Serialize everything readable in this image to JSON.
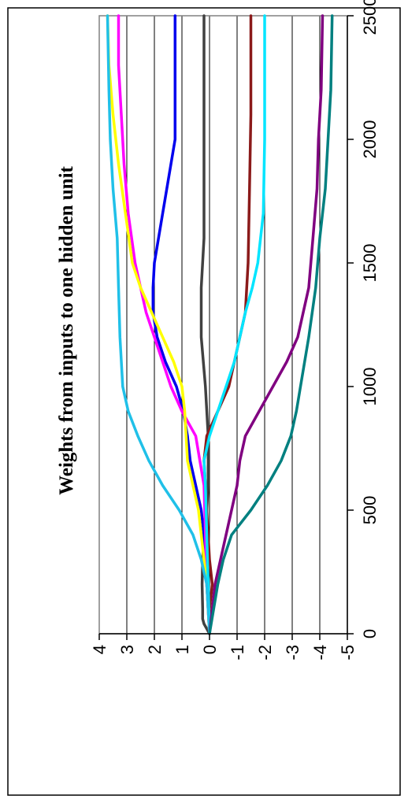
{
  "chart_data": {
    "type": "line",
    "title": "Weights from inputs to one hidden unit",
    "orientation": "rotated-90-counterclockwise",
    "xlabel": "",
    "ylabel": "",
    "xlim": [
      0,
      2500
    ],
    "ylim": [
      -5,
      4
    ],
    "x_ticks": [
      "0",
      "500",
      "1000",
      "1500",
      "2000",
      "2500"
    ],
    "y_ticks": [
      "4",
      "3",
      "2",
      "1",
      "0",
      "-1",
      "-2",
      "-3",
      "-4",
      "-5"
    ],
    "grid": true,
    "legend": "none",
    "series": [
      {
        "color": "#404040",
        "points": [
          [
            0,
            0
          ],
          [
            20,
            0.1
          ],
          [
            40,
            0.2
          ],
          [
            60,
            0.25
          ],
          [
            100,
            0.25
          ],
          [
            200,
            0.27
          ],
          [
            300,
            0.25
          ],
          [
            400,
            0.2
          ],
          [
            500,
            0.1
          ],
          [
            600,
            0.05
          ],
          [
            800,
            0.05
          ],
          [
            1000,
            0.15
          ],
          [
            1200,
            0.3
          ],
          [
            1400,
            0.3
          ],
          [
            1600,
            0.2
          ],
          [
            2000,
            0.2
          ],
          [
            2500,
            0.2
          ]
        ]
      },
      {
        "color": "#8b1a1a",
        "points": [
          [
            0,
            0
          ],
          [
            100,
            0
          ],
          [
            200,
            -0.1
          ],
          [
            300,
            0
          ],
          [
            500,
            0.1
          ],
          [
            700,
            0.2
          ],
          [
            800,
            0.1
          ],
          [
            900,
            -0.3
          ],
          [
            1000,
            -0.7
          ],
          [
            1100,
            -0.9
          ],
          [
            1200,
            -1.1
          ],
          [
            1300,
            -1.3
          ],
          [
            1500,
            -1.4
          ],
          [
            1800,
            -1.45
          ],
          [
            2100,
            -1.5
          ],
          [
            2500,
            -1.5
          ]
        ]
      },
      {
        "color": "#0000ee",
        "points": [
          [
            0,
            0
          ],
          [
            100,
            0.05
          ],
          [
            200,
            0.1
          ],
          [
            300,
            0.15
          ],
          [
            400,
            0.2
          ],
          [
            500,
            0.3
          ],
          [
            600,
            0.5
          ],
          [
            700,
            0.7
          ],
          [
            800,
            0.8
          ],
          [
            900,
            0.95
          ],
          [
            1000,
            1.2
          ],
          [
            1100,
            1.6
          ],
          [
            1200,
            1.9
          ],
          [
            1300,
            2.05
          ],
          [
            1400,
            2.05
          ],
          [
            1500,
            2.0
          ],
          [
            1700,
            1.7
          ],
          [
            2000,
            1.25
          ],
          [
            2500,
            1.25
          ]
        ]
      },
      {
        "color": "#ff00ff",
        "points": [
          [
            0,
            0
          ],
          [
            200,
            0.1
          ],
          [
            400,
            0.15
          ],
          [
            600,
            0.2
          ],
          [
            800,
            0.5
          ],
          [
            900,
            1.0
          ],
          [
            1000,
            1.4
          ],
          [
            1100,
            1.7
          ],
          [
            1200,
            2.0
          ],
          [
            1300,
            2.3
          ],
          [
            1400,
            2.5
          ],
          [
            1500,
            2.7
          ],
          [
            1700,
            2.95
          ],
          [
            1900,
            3.1
          ],
          [
            2100,
            3.2
          ],
          [
            2300,
            3.3
          ],
          [
            2500,
            3.3
          ]
        ]
      },
      {
        "color": "#ffff00",
        "points": [
          [
            0,
            0
          ],
          [
            200,
            0.1
          ],
          [
            500,
            0.4
          ],
          [
            700,
            0.8
          ],
          [
            900,
            0.9
          ],
          [
            1000,
            1.0
          ],
          [
            1100,
            1.3
          ],
          [
            1200,
            1.7
          ],
          [
            1300,
            2.1
          ],
          [
            1400,
            2.5
          ],
          [
            1500,
            2.8
          ],
          [
            1700,
            3.05
          ],
          [
            1900,
            3.3
          ],
          [
            2100,
            3.5
          ],
          [
            2300,
            3.65
          ],
          [
            2500,
            3.7
          ]
        ]
      },
      {
        "color": "#00e5ff",
        "points": [
          [
            0,
            0
          ],
          [
            200,
            0.05
          ],
          [
            400,
            0.1
          ],
          [
            600,
            0.15
          ],
          [
            700,
            0.2
          ],
          [
            800,
            0
          ],
          [
            900,
            -0.3
          ],
          [
            1000,
            -0.6
          ],
          [
            1100,
            -0.9
          ],
          [
            1200,
            -1.1
          ],
          [
            1300,
            -1.3
          ],
          [
            1400,
            -1.55
          ],
          [
            1500,
            -1.75
          ],
          [
            1700,
            -1.95
          ],
          [
            2000,
            -2.0
          ],
          [
            2500,
            -2.0
          ]
        ]
      },
      {
        "color": "#20c0e8",
        "points": [
          [
            0,
            0
          ],
          [
            200,
            0.1
          ],
          [
            300,
            0.3
          ],
          [
            400,
            0.6
          ],
          [
            500,
            1.1
          ],
          [
            600,
            1.7
          ],
          [
            700,
            2.2
          ],
          [
            800,
            2.6
          ],
          [
            900,
            2.95
          ],
          [
            1000,
            3.15
          ],
          [
            1200,
            3.25
          ],
          [
            1400,
            3.3
          ],
          [
            1600,
            3.35
          ],
          [
            1800,
            3.5
          ],
          [
            2000,
            3.6
          ],
          [
            2200,
            3.65
          ],
          [
            2500,
            3.7
          ]
        ]
      },
      {
        "color": "#800080",
        "points": [
          [
            0,
            0
          ],
          [
            200,
            -0.2
          ],
          [
            300,
            -0.4
          ],
          [
            400,
            -0.6
          ],
          [
            500,
            -0.8
          ],
          [
            600,
            -1.0
          ],
          [
            700,
            -1.1
          ],
          [
            800,
            -1.3
          ],
          [
            900,
            -1.8
          ],
          [
            1000,
            -2.3
          ],
          [
            1100,
            -2.8
          ],
          [
            1200,
            -3.2
          ],
          [
            1300,
            -3.4
          ],
          [
            1400,
            -3.6
          ],
          [
            1600,
            -3.75
          ],
          [
            1800,
            -3.9
          ],
          [
            2000,
            -3.95
          ],
          [
            2200,
            -4.05
          ],
          [
            2500,
            -4.1
          ]
        ]
      },
      {
        "color": "#008080",
        "points": [
          [
            0,
            0
          ],
          [
            200,
            -0.3
          ],
          [
            300,
            -0.5
          ],
          [
            400,
            -0.8
          ],
          [
            500,
            -1.5
          ],
          [
            600,
            -2.1
          ],
          [
            700,
            -2.6
          ],
          [
            800,
            -2.95
          ],
          [
            900,
            -3.15
          ],
          [
            1000,
            -3.3
          ],
          [
            1200,
            -3.6
          ],
          [
            1400,
            -3.85
          ],
          [
            1600,
            -4.0
          ],
          [
            1800,
            -4.2
          ],
          [
            2000,
            -4.3
          ],
          [
            2200,
            -4.4
          ],
          [
            2500,
            -4.45
          ]
        ]
      }
    ]
  }
}
